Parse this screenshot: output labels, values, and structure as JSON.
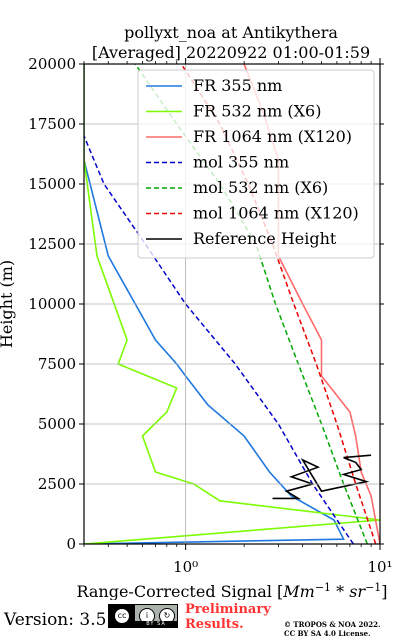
{
  "title_line1": "pollyxt_noa at Antikythera",
  "title_line2": "[Averaged] 20220922 01:00-01:59",
  "footer": {
    "version": "Version: 3.5",
    "badge_text": "BY  SA",
    "preliminary_line1": "Preliminary",
    "preliminary_line2": "Results.",
    "copyright_line1": "© TROPOS & NOA 2022.",
    "copyright_line2": "CC BY SA 4.0 License."
  },
  "chart_data": {
    "type": "line",
    "title": "pollyxt_noa at Antikythera [Averaged] 20220922 01:00-01:59",
    "xlabel": "Range-Corrected Signal [Mm^-1 * sr^-1]",
    "ylabel": "Height (m)",
    "xscale": "log",
    "xlim": [
      0.3,
      10
    ],
    "ylim": [
      0,
      20000
    ],
    "x_ticks": [
      {
        "value": 1,
        "label": "10⁰"
      },
      {
        "value": 10,
        "label": "10¹"
      }
    ],
    "y_ticks": [
      0,
      2500,
      5000,
      7500,
      10000,
      12500,
      15000,
      17500,
      20000
    ],
    "grid": true,
    "legend_position": "top-right",
    "series": [
      {
        "name": "FR 355 nm",
        "color": "#1f78e0",
        "style": "solid",
        "x": [
          0.3,
          6.5,
          5.8,
          3.5,
          2.7,
          2.0,
          1.3,
          1.0,
          0.9,
          0.7,
          0.4,
          0.3,
          0.3
        ],
        "y": [
          0,
          200,
          1000,
          2000,
          3000,
          4500,
          5800,
          7000,
          7500,
          8500,
          12000,
          16000,
          20000
        ]
      },
      {
        "name": "FR 532 nm (X6)",
        "color": "#7cfc00",
        "style": "solid",
        "x": [
          0.3,
          10,
          1.5,
          1.1,
          0.7,
          0.6,
          0.8,
          0.9,
          0.45,
          0.5,
          0.35,
          0.3,
          0.3
        ],
        "y": [
          0,
          1000,
          1800,
          2500,
          3000,
          4500,
          5500,
          6500,
          7500,
          8500,
          12000,
          16000,
          20000
        ]
      },
      {
        "name": "FR 1064 nm (X120)",
        "color": "#ff6b6b",
        "style": "solid",
        "x": [
          10,
          9,
          8,
          7.5,
          7,
          5,
          5,
          4,
          3,
          3,
          3,
          2.5,
          2.0
        ],
        "y": [
          0,
          2000,
          3000,
          4500,
          5500,
          7000,
          8500,
          10000,
          12000,
          14000,
          16000,
          18000,
          20000
        ]
      },
      {
        "name": "mol 355 nm",
        "color": "#0000cc",
        "style": "dashed",
        "x": [
          7.3,
          4.5,
          3.0,
          1.8,
          1.0,
          0.62,
          0.38,
          0.3
        ],
        "y": [
          0,
          2500,
          5000,
          7500,
          10000,
          12500,
          15000,
          17000
        ]
      },
      {
        "name": "mol 532 nm (X6)",
        "color": "#00aa00",
        "style": "dashed",
        "x": [
          8.6,
          6.5,
          5.0,
          3.8,
          2.9,
          2.3,
          1.5,
          0.9,
          0.55
        ],
        "y": [
          0,
          2500,
          5000,
          7500,
          10000,
          12500,
          15000,
          17500,
          20000
        ]
      },
      {
        "name": "mol 1064 nm (X120)",
        "color": "#ee0000",
        "style": "dashed",
        "x": [
          9.5,
          7.5,
          6.0,
          4.7,
          3.6,
          2.8,
          2.1,
          1.5,
          1.1,
          0.95
        ],
        "y": [
          0,
          2500,
          5000,
          7500,
          10000,
          12500,
          15000,
          17500,
          19200,
          20000
        ]
      },
      {
        "name": "Reference Height",
        "color": "#000000",
        "style": "solid",
        "x": [
          2.8,
          3.8,
          3.3,
          4.5,
          3.5,
          4.8,
          4.0,
          5.0,
          8.5,
          6.5,
          8.0,
          7.5,
          6.5,
          9.0
        ],
        "y": [
          1900,
          1900,
          2200,
          2500,
          2800,
          3200,
          3500,
          2200,
          2600,
          2900,
          3100,
          3400,
          3600,
          3700
        ]
      }
    ]
  }
}
